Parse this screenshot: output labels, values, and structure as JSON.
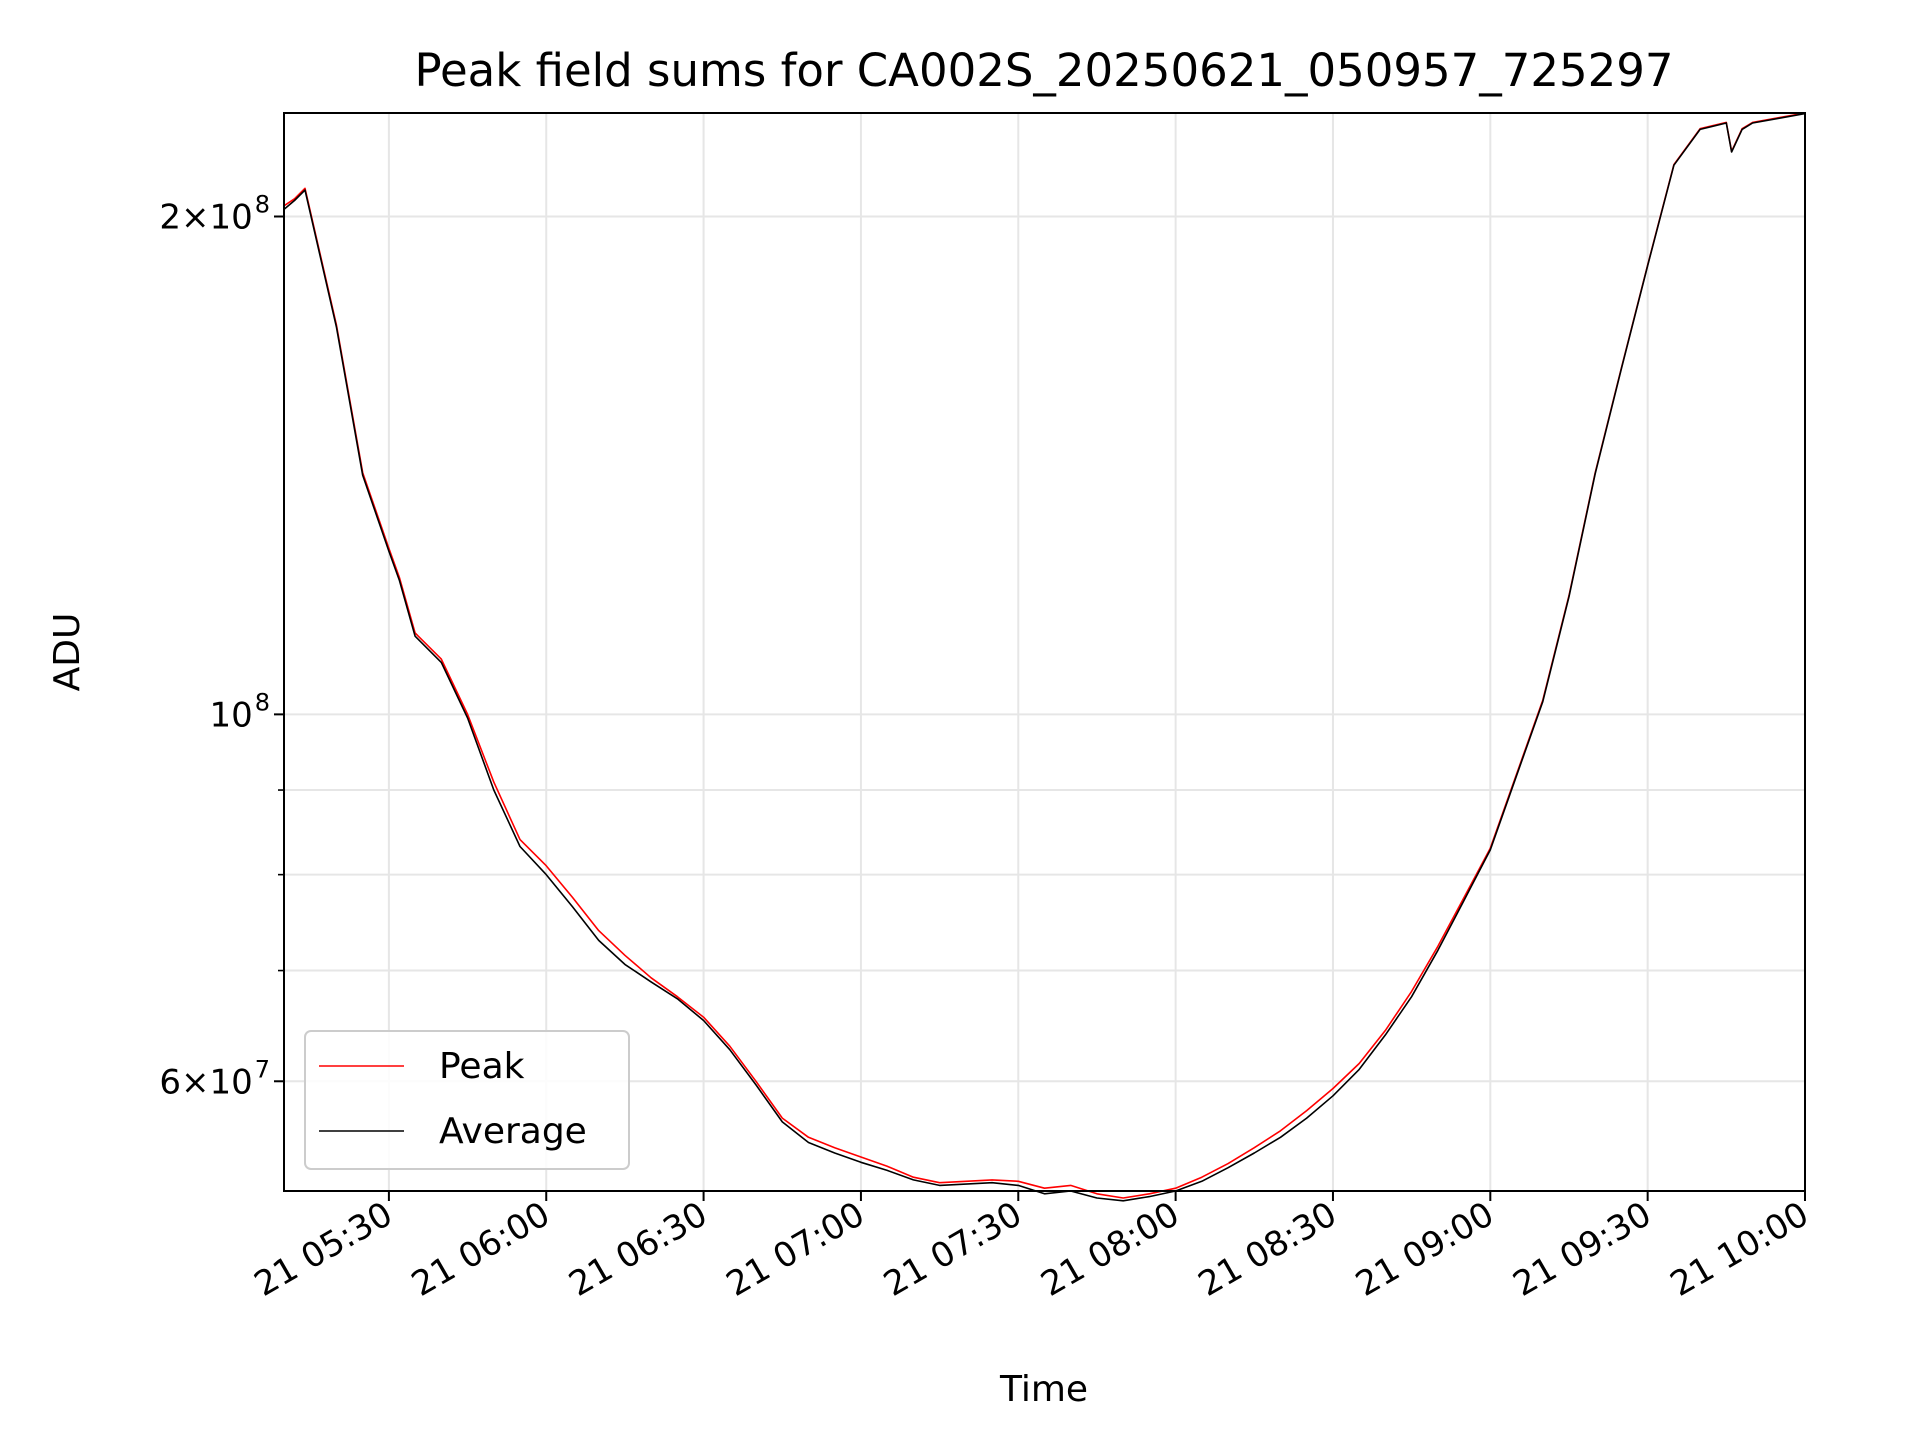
{
  "chart_data": {
    "type": "line",
    "title": "Peak field sums for CA002S_20250621_050957_725297",
    "xlabel": "Time",
    "ylabel": "ADU",
    "yscale": "log",
    "grid": true,
    "legend_position": "lower-left",
    "x_ticks": [
      "21 05:30",
      "21 06:00",
      "21 06:30",
      "21 07:00",
      "21 07:30",
      "21 08:00",
      "21 08:30",
      "21 09:00",
      "21 09:30",
      "21 10:00"
    ],
    "y_ticks": [
      {
        "value": 200000000,
        "mantissa": "2×10",
        "exponent": "8"
      },
      {
        "value": 100000000,
        "mantissa": "10",
        "exponent": "8"
      },
      {
        "value": 60000000,
        "mantissa": "6×10",
        "exponent": "7"
      }
    ],
    "ylim": [
      51500000,
      231000000
    ],
    "xlim": [
      "05:10",
      "10:00"
    ],
    "x": [
      "05:10",
      "05:12",
      "05:14",
      "05:20",
      "05:25",
      "05:30",
      "05:32",
      "05:35",
      "05:40",
      "05:45",
      "05:50",
      "05:55",
      "06:00",
      "06:05",
      "06:10",
      "06:15",
      "06:20",
      "06:25",
      "06:30",
      "06:35",
      "06:40",
      "06:45",
      "06:50",
      "06:55",
      "07:00",
      "07:05",
      "07:10",
      "07:15",
      "07:20",
      "07:25",
      "07:30",
      "07:35",
      "07:40",
      "07:45",
      "07:50",
      "07:55",
      "08:00",
      "08:05",
      "08:10",
      "08:15",
      "08:20",
      "08:25",
      "08:30",
      "08:35",
      "08:40",
      "08:45",
      "08:50",
      "08:55",
      "09:00",
      "09:05",
      "09:10",
      "09:15",
      "09:20",
      "09:25",
      "09:30",
      "09:35",
      "09:40",
      "09:45",
      "09:46",
      "09:48",
      "09:50",
      "09:55",
      "10:00"
    ],
    "series": [
      {
        "name": "Peak",
        "color": "#ff0000",
        "values": [
          203000000,
          205000000,
          208000000,
          172000000,
          140000000,
          126000000,
          121000000,
          112000000,
          108000000,
          100000000,
          91000000,
          84000000,
          81000000,
          77500000,
          74000000,
          71500000,
          69300000,
          67500000,
          65600000,
          63000000,
          60000000,
          57000000,
          55500000,
          54700000,
          54000000,
          53300000,
          52500000,
          52100000,
          52200000,
          52300000,
          52200000,
          51700000,
          51900000,
          51300000,
          51000000,
          51300000,
          51700000,
          52500000,
          53500000,
          54700000,
          56000000,
          57600000,
          59400000,
          61500000,
          64400000,
          68000000,
          72400000,
          77500000,
          83000000,
          92000000,
          102000000,
          118000000,
          140000000,
          162000000,
          187000000,
          215000000,
          226000000,
          228000000,
          219000000,
          226000000,
          228000000,
          229500000,
          231000000
        ]
      },
      {
        "name": "Average",
        "color": "#000000",
        "values": [
          202000000,
          204500000,
          207500000,
          171500000,
          139500000,
          125500000,
          120500000,
          111500000,
          107500000,
          99500000,
          90000000,
          83200000,
          80000000,
          76500000,
          73000000,
          70600000,
          68900000,
          67300000,
          65300000,
          62700000,
          59700000,
          56700000,
          55100000,
          54300000,
          53600000,
          53000000,
          52300000,
          51900000,
          52000000,
          52100000,
          51900000,
          51300000,
          51500000,
          51000000,
          50800000,
          51100000,
          51500000,
          52200000,
          53200000,
          54300000,
          55500000,
          57000000,
          58800000,
          61000000,
          64000000,
          67500000,
          72000000,
          77200000,
          82800000,
          91800000,
          101800000,
          117800000,
          139800000,
          161800000,
          186800000,
          214800000,
          225800000,
          227800000,
          218800000,
          225800000,
          227800000,
          229300000,
          230800000
        ]
      }
    ]
  }
}
